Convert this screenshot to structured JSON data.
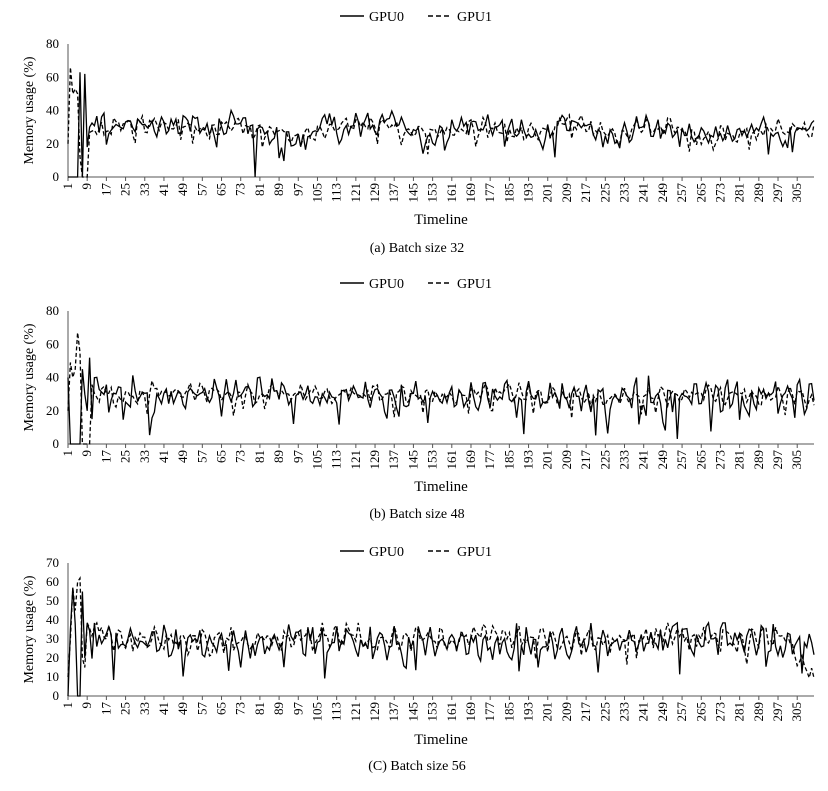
{
  "chart_data": [
    {
      "type": "line",
      "caption": "(a) Batch size 32",
      "xlabel": "Timeline",
      "ylabel": "Memory usage (%)",
      "ylim": [
        0,
        80
      ],
      "yticks": [
        0,
        20,
        40,
        60,
        80
      ],
      "xticks": [
        1,
        9,
        17,
        25,
        33,
        41,
        49,
        57,
        65,
        73,
        81,
        89,
        97,
        105,
        113,
        121,
        129,
        137,
        145,
        153,
        161,
        169,
        177,
        185,
        193,
        201,
        209,
        217,
        225,
        233,
        241,
        249,
        257,
        265,
        273,
        281,
        289,
        297,
        305
      ],
      "xlim": [
        1,
        312
      ],
      "legend_position": "top-center",
      "grid": false,
      "series": [
        {
          "name": "GPU0",
          "style": "solid",
          "keypoints": [
            [
              1,
              0
            ],
            [
              5,
              0
            ],
            [
              6,
              63
            ],
            [
              7,
              0
            ],
            [
              8,
              62
            ],
            [
              9,
              18
            ],
            [
              10,
              30
            ],
            [
              12,
              35
            ],
            [
              20,
              30
            ],
            [
              30,
              33
            ],
            [
              40,
              30
            ],
            [
              50,
              33
            ],
            [
              60,
              30
            ],
            [
              70,
              33
            ],
            [
              76,
              33
            ],
            [
              78,
              32
            ],
            [
              79,
              0
            ],
            [
              80,
              30
            ],
            [
              85,
              25
            ],
            [
              90,
              24
            ],
            [
              100,
              22
            ],
            [
              105,
              30
            ],
            [
              110,
              35
            ],
            [
              115,
              20
            ],
            [
              120,
              33
            ],
            [
              130,
              30
            ],
            [
              137,
              37
            ],
            [
              145,
              28
            ],
            [
              150,
              20
            ],
            [
              160,
              27
            ],
            [
              170,
              32
            ],
            [
              180,
              32
            ],
            [
              190,
              27
            ],
            [
              200,
              23
            ],
            [
              210,
              35
            ],
            [
              220,
              27
            ],
            [
              230,
              22
            ],
            [
              240,
              32
            ],
            [
              250,
              28
            ],
            [
              260,
              27
            ],
            [
              270,
              25
            ],
            [
              280,
              25
            ],
            [
              290,
              30
            ],
            [
              300,
              25
            ],
            [
              305,
              27
            ],
            [
              312,
              28
            ]
          ],
          "base": 28,
          "amp": 6,
          "start": 12
        },
        {
          "name": "GPU1",
          "style": "dashed",
          "keypoints": [
            [
              1,
              20
            ],
            [
              2,
              66
            ],
            [
              3,
              50
            ],
            [
              4,
              53
            ],
            [
              5,
              50
            ],
            [
              6,
              12
            ],
            [
              7,
              0
            ],
            [
              9,
              0
            ],
            [
              10,
              28
            ],
            [
              20,
              30
            ],
            [
              30,
              32
            ],
            [
              40,
              30
            ],
            [
              50,
              32
            ],
            [
              60,
              28
            ],
            [
              70,
              32
            ],
            [
              80,
              28
            ],
            [
              90,
              27
            ],
            [
              100,
              24
            ],
            [
              110,
              30
            ],
            [
              120,
              30
            ],
            [
              130,
              32
            ],
            [
              140,
              30
            ],
            [
              150,
              27
            ],
            [
              160,
              26
            ],
            [
              170,
              30
            ],
            [
              180,
              30
            ],
            [
              190,
              28
            ],
            [
              200,
              27
            ],
            [
              210,
              34
            ],
            [
              220,
              28
            ],
            [
              230,
              25
            ],
            [
              240,
              30
            ],
            [
              250,
              30
            ],
            [
              260,
              27
            ],
            [
              270,
              25
            ],
            [
              280,
              27
            ],
            [
              290,
              28
            ],
            [
              300,
              30
            ],
            [
              305,
              30
            ],
            [
              312,
              28
            ]
          ],
          "base": 27,
          "amp": 5,
          "start": 10
        }
      ]
    },
    {
      "type": "line",
      "caption": "(b) Batch size 48",
      "xlabel": "Timeline",
      "ylabel": "Memory usage (%)",
      "ylim": [
        0,
        80
      ],
      "yticks": [
        0,
        20,
        40,
        60,
        80
      ],
      "xticks": [
        1,
        9,
        17,
        25,
        33,
        41,
        49,
        57,
        65,
        73,
        81,
        89,
        97,
        105,
        113,
        121,
        129,
        137,
        145,
        153,
        161,
        169,
        177,
        185,
        193,
        201,
        209,
        217,
        225,
        233,
        241,
        249,
        257,
        265,
        273,
        281,
        289,
        297,
        305
      ],
      "xlim": [
        1,
        312
      ],
      "legend_position": "top-center",
      "grid": false,
      "series": [
        {
          "name": "GPU0",
          "style": "solid",
          "keypoints": [
            [
              1,
              40
            ],
            [
              2,
              0
            ],
            [
              6,
              0
            ],
            [
              7,
              45
            ],
            [
              8,
              30
            ],
            [
              9,
              20
            ],
            [
              10,
              52
            ],
            [
              11,
              15
            ],
            [
              12,
              35
            ],
            [
              20,
              32
            ],
            [
              40,
              30
            ],
            [
              60,
              30
            ],
            [
              80,
              30
            ],
            [
              100,
              28
            ],
            [
              120,
              30
            ],
            [
              140,
              28
            ],
            [
              160,
              28
            ],
            [
              180,
              30
            ],
            [
              200,
              28
            ],
            [
              220,
              28
            ],
            [
              240,
              30
            ],
            [
              260,
              28
            ],
            [
              280,
              28
            ],
            [
              300,
              30
            ],
            [
              312,
              28
            ]
          ],
          "base": 28,
          "amp": 9,
          "start": 12
        },
        {
          "name": "GPU1",
          "style": "dashed",
          "keypoints": [
            [
              1,
              20
            ],
            [
              2,
              49
            ],
            [
              3,
              40
            ],
            [
              4,
              45
            ],
            [
              5,
              67
            ],
            [
              6,
              55
            ],
            [
              7,
              0
            ],
            [
              10,
              0
            ],
            [
              11,
              30
            ],
            [
              20,
              30
            ],
            [
              40,
              32
            ],
            [
              60,
              30
            ],
            [
              80,
              30
            ],
            [
              100,
              30
            ],
            [
              120,
              30
            ],
            [
              140,
              30
            ],
            [
              160,
              28
            ],
            [
              180,
              32
            ],
            [
              200,
              30
            ],
            [
              220,
              28
            ],
            [
              240,
              28
            ],
            [
              260,
              30
            ],
            [
              280,
              30
            ],
            [
              300,
              30
            ],
            [
              312,
              26
            ]
          ],
          "base": 29,
          "amp": 5,
          "start": 11
        }
      ]
    },
    {
      "type": "line",
      "caption": "(C) Batch size 56",
      "xlabel": "Timeline",
      "ylabel": "Memory usage (%)",
      "ylim": [
        0,
        70
      ],
      "yticks": [
        0,
        10,
        20,
        30,
        40,
        50,
        60,
        70
      ],
      "xticks": [
        1,
        9,
        17,
        25,
        33,
        41,
        49,
        57,
        65,
        73,
        81,
        89,
        97,
        105,
        113,
        121,
        129,
        137,
        145,
        153,
        161,
        169,
        177,
        185,
        193,
        201,
        209,
        217,
        225,
        233,
        241,
        249,
        257,
        265,
        273,
        281,
        289,
        297,
        305
      ],
      "xlim": [
        1,
        312
      ],
      "legend_position": "top-center",
      "grid": false,
      "series": [
        {
          "name": "GPU0",
          "style": "solid",
          "keypoints": [
            [
              1,
              0
            ],
            [
              2,
              35
            ],
            [
              3,
              57
            ],
            [
              4,
              38
            ],
            [
              5,
              0
            ],
            [
              6,
              0
            ],
            [
              7,
              55
            ],
            [
              8,
              20
            ],
            [
              9,
              38
            ],
            [
              20,
              30
            ],
            [
              40,
              28
            ],
            [
              60,
              28
            ],
            [
              80,
              28
            ],
            [
              100,
              30
            ],
            [
              120,
              28
            ],
            [
              140,
              28
            ],
            [
              160,
              30
            ],
            [
              180,
              28
            ],
            [
              200,
              28
            ],
            [
              220,
              28
            ],
            [
              240,
              28
            ],
            [
              260,
              32
            ],
            [
              280,
              30
            ],
            [
              300,
              28
            ],
            [
              312,
              28
            ]
          ],
          "base": 28,
          "amp": 8,
          "start": 9
        },
        {
          "name": "GPU1",
          "style": "dashed",
          "keypoints": [
            [
              1,
              10
            ],
            [
              2,
              30
            ],
            [
              3,
              57
            ],
            [
              4,
              45
            ],
            [
              5,
              60
            ],
            [
              6,
              62
            ],
            [
              7,
              20
            ],
            [
              8,
              15
            ],
            [
              9,
              38
            ],
            [
              20,
              30
            ],
            [
              40,
              30
            ],
            [
              60,
              28
            ],
            [
              80,
              30
            ],
            [
              100,
              32
            ],
            [
              120,
              32
            ],
            [
              140,
              30
            ],
            [
              160,
              30
            ],
            [
              180,
              32
            ],
            [
              200,
              30
            ],
            [
              220,
              28
            ],
            [
              240,
              32
            ],
            [
              260,
              32
            ],
            [
              280,
              30
            ],
            [
              300,
              32
            ],
            [
              312,
              8
            ]
          ],
          "base": 30,
          "amp": 6,
          "start": 9
        }
      ]
    }
  ]
}
